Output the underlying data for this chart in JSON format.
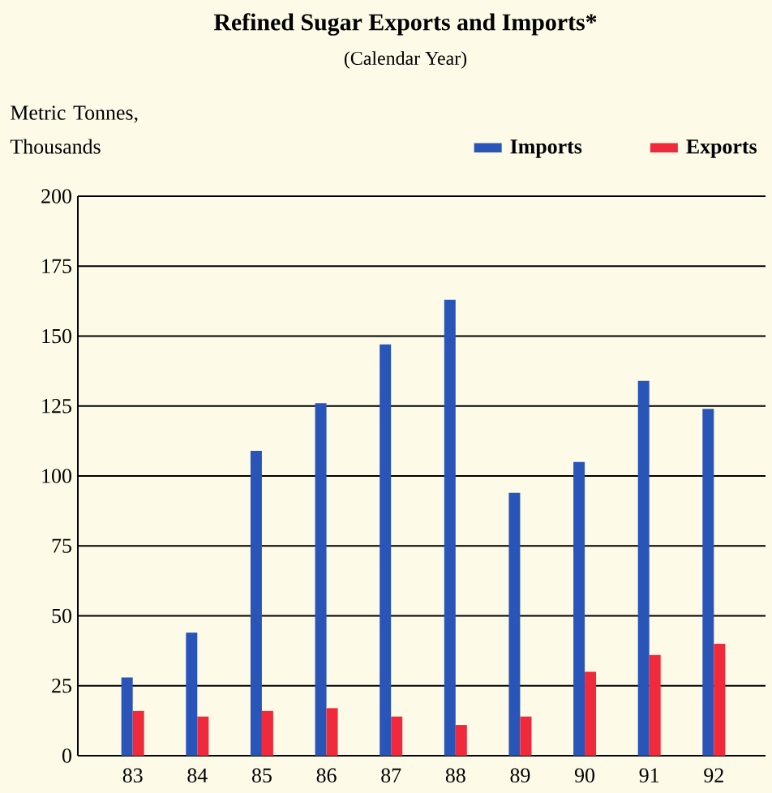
{
  "chart_data": {
    "type": "bar",
    "title": "Refined Sugar Exports and Imports*",
    "subtitle": "(Calendar Year)",
    "ylabel": "Metric Tonnes, Thousands",
    "categories": [
      "83",
      "84",
      "85",
      "86",
      "87",
      "88",
      "89",
      "90",
      "91",
      "92"
    ],
    "series": [
      {
        "name": "Imports",
        "color": "#2a55b8",
        "values": [
          28,
          44,
          109,
          126,
          147,
          163,
          94,
          105,
          134,
          124
        ]
      },
      {
        "name": "Exports",
        "color": "#f02a3a",
        "values": [
          16,
          14,
          16,
          17,
          14,
          11,
          14,
          30,
          36,
          40
        ]
      }
    ],
    "ylim": [
      0,
      200
    ],
    "yticks": [
      0,
      25,
      50,
      75,
      100,
      125,
      150,
      175,
      200
    ],
    "grid": "y",
    "legend": "top right"
  }
}
